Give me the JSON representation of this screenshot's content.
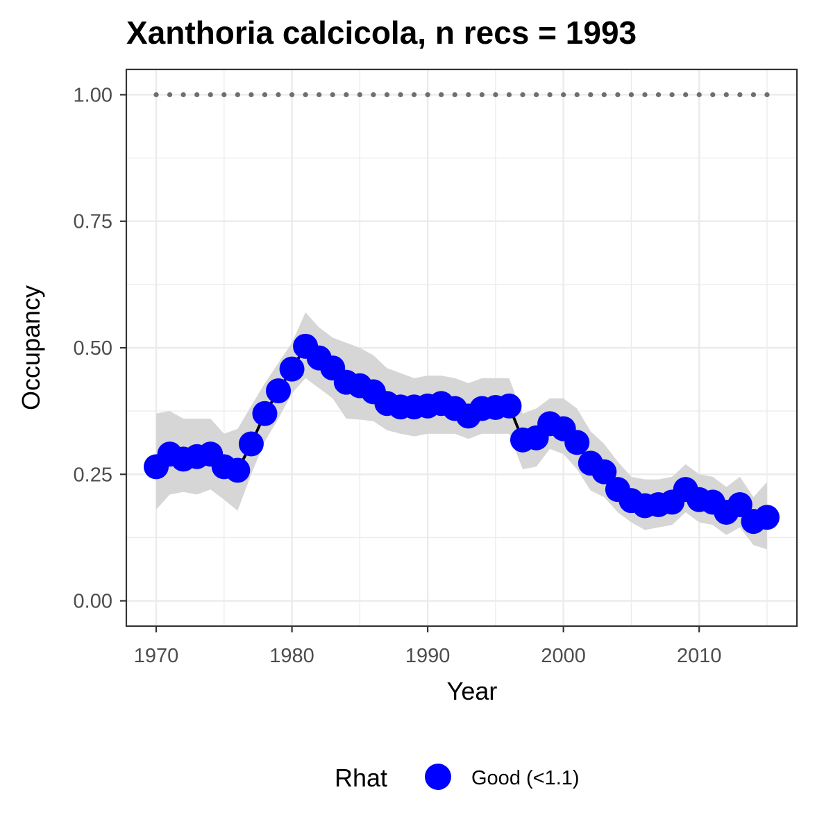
{
  "chart_data": {
    "type": "line",
    "title": "Xanthoria calcicola, n recs = 1993",
    "xlabel": "Year",
    "ylabel": "Occupancy",
    "xlim": [
      1967.8,
      2017.2
    ],
    "ylim": [
      -0.05,
      1.05
    ],
    "x_ticks": [
      1970,
      1980,
      1990,
      2000,
      2010
    ],
    "x_tick_labels": [
      "1970",
      "1980",
      "1990",
      "2000",
      "2010"
    ],
    "y_ticks": [
      0,
      0.25,
      0.5,
      0.75,
      1.0
    ],
    "y_tick_labels": [
      "0.00",
      "0.25",
      "0.50",
      "0.75",
      "1.00"
    ],
    "grid": true,
    "x": [
      1970,
      1971,
      1972,
      1973,
      1974,
      1975,
      1976,
      1977,
      1978,
      1979,
      1980,
      1981,
      1982,
      1983,
      1984,
      1985,
      1986,
      1987,
      1988,
      1989,
      1990,
      1991,
      1992,
      1993,
      1994,
      1995,
      1996,
      1997,
      1998,
      1999,
      2000,
      2001,
      2002,
      2003,
      2004,
      2005,
      2006,
      2007,
      2008,
      2009,
      2010,
      2011,
      2012,
      2013,
      2014,
      2015
    ],
    "series": [
      {
        "name": "Occupancy",
        "values": [
          0.265,
          0.29,
          0.28,
          0.285,
          0.29,
          0.265,
          0.258,
          0.31,
          0.37,
          0.415,
          0.458,
          0.503,
          0.48,
          0.46,
          0.432,
          0.425,
          0.413,
          0.39,
          0.383,
          0.383,
          0.385,
          0.39,
          0.38,
          0.365,
          0.38,
          0.382,
          0.385,
          0.318,
          0.322,
          0.35,
          0.34,
          0.313,
          0.272,
          0.255,
          0.22,
          0.198,
          0.188,
          0.19,
          0.195,
          0.22,
          0.2,
          0.195,
          0.175,
          0.19,
          0.157,
          0.165
        ],
        "lower": [
          0.18,
          0.21,
          0.215,
          0.21,
          0.22,
          0.2,
          0.178,
          0.25,
          0.315,
          0.36,
          0.41,
          0.44,
          0.42,
          0.4,
          0.36,
          0.358,
          0.355,
          0.337,
          0.33,
          0.325,
          0.33,
          0.33,
          0.33,
          0.32,
          0.33,
          0.33,
          0.33,
          0.26,
          0.265,
          0.3,
          0.29,
          0.26,
          0.218,
          0.205,
          0.175,
          0.155,
          0.14,
          0.145,
          0.15,
          0.175,
          0.155,
          0.15,
          0.13,
          0.145,
          0.11,
          0.102
        ],
        "upper": [
          0.37,
          0.375,
          0.36,
          0.36,
          0.36,
          0.33,
          0.34,
          0.385,
          0.43,
          0.47,
          0.51,
          0.57,
          0.54,
          0.52,
          0.51,
          0.5,
          0.485,
          0.46,
          0.45,
          0.44,
          0.445,
          0.445,
          0.44,
          0.43,
          0.44,
          0.44,
          0.44,
          0.37,
          0.38,
          0.4,
          0.4,
          0.38,
          0.335,
          0.31,
          0.275,
          0.245,
          0.24,
          0.24,
          0.245,
          0.27,
          0.25,
          0.245,
          0.225,
          0.245,
          0.205,
          0.235
        ]
      },
      {
        "name": "Reference",
        "values": [
          1,
          1,
          1,
          1,
          1,
          1,
          1,
          1,
          1,
          1,
          1,
          1,
          1,
          1,
          1,
          1,
          1,
          1,
          1,
          1,
          1,
          1,
          1,
          1,
          1,
          1,
          1,
          1,
          1,
          1,
          1,
          1,
          1,
          1,
          1,
          1,
          1,
          1,
          1,
          1,
          1,
          1,
          1,
          1,
          1,
          1
        ]
      }
    ],
    "legend": {
      "title": "Rhat",
      "position": "bottom",
      "entries": [
        {
          "label": "Good (<1.1)",
          "color": "#0000ff"
        }
      ]
    },
    "colors": {
      "points": "#0000ff",
      "line": "#000000",
      "ribbon": "#d6d6d6",
      "reference": "#6e6e6e",
      "grid": "#ebebeb",
      "panel_border": "#333333"
    }
  }
}
